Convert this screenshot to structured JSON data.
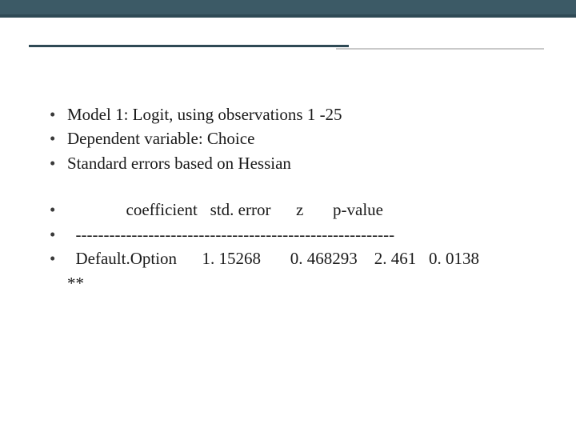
{
  "accent": {
    "bar1_color": "#3c5a66",
    "bar2_color": "#2f4a55",
    "underline_color": "#2f4a55",
    "underline_shadow_color": "#c9c9c9"
  },
  "text": {
    "color": "#1a1a1a",
    "font_family": "Georgia",
    "font_size_pt": 16
  },
  "bullets": {
    "group1": [
      "Model 1: Logit, using observations 1 -25",
      "Dependent variable: Choice",
      "Standard errors based on Hessian"
    ],
    "group2": [
      "              coefficient   std. error      z       p-value",
      "  ---------------------------------------------------------",
      "  Default.Option      1. 15268       0. 468293    2. 461   0. 0138"
    ],
    "sig_line": "**"
  }
}
